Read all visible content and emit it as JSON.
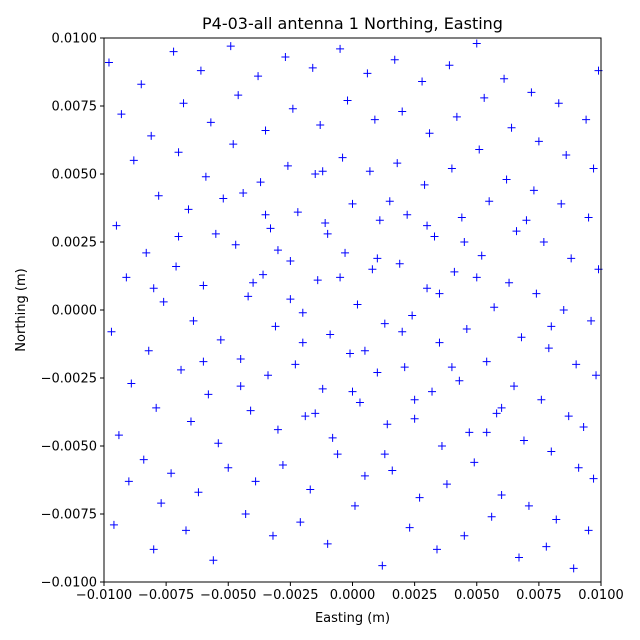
{
  "chart_data": {
    "type": "scatter",
    "title": "P4-03-all antenna 1 Northing, Easting",
    "xlabel": "Easting (m)",
    "ylabel": "Northing (m)",
    "xlim": [
      -0.01,
      0.01
    ],
    "ylim": [
      -0.01,
      0.01
    ],
    "xticks": [
      "−0.0100",
      "−0.0075",
      "−0.0050",
      "−0.0025",
      "0.0000",
      "0.0025",
      "0.0050",
      "0.0075",
      "0.0100"
    ],
    "yticks": [
      "−0.0100",
      "−0.0075",
      "−0.0050",
      "−0.0025",
      "0.0000",
      "0.0025",
      "0.0050",
      "0.0075",
      "0.0100"
    ],
    "tick_values": [
      -0.01,
      -0.0075,
      -0.005,
      -0.0025,
      0,
      0.0025,
      0.005,
      0.0075,
      0.01
    ],
    "marker": "+",
    "color": "#0000ff",
    "grid": false,
    "note_points": "representative sample of the dense point cloud",
    "points": [
      [
        -0.0098,
        0.0091
      ],
      [
        -0.0093,
        0.0072
      ],
      [
        -0.0088,
        0.0055
      ],
      [
        -0.0095,
        0.0031
      ],
      [
        -0.0091,
        0.0012
      ],
      [
        -0.0097,
        -0.0008
      ],
      [
        -0.0089,
        -0.0027
      ],
      [
        -0.0094,
        -0.0046
      ],
      [
        -0.009,
        -0.0063
      ],
      [
        -0.0096,
        -0.0079
      ],
      [
        -0.0085,
        0.0083
      ],
      [
        -0.0081,
        0.0064
      ],
      [
        -0.0078,
        0.0042
      ],
      [
        -0.0083,
        0.0021
      ],
      [
        -0.0076,
        0.0003
      ],
      [
        -0.0082,
        -0.0015
      ],
      [
        -0.0079,
        -0.0036
      ],
      [
        -0.0084,
        -0.0055
      ],
      [
        -0.0077,
        -0.0071
      ],
      [
        -0.008,
        -0.0088
      ],
      [
        -0.0072,
        0.0095
      ],
      [
        -0.0068,
        0.0076
      ],
      [
        -0.007,
        0.0058
      ],
      [
        -0.0066,
        0.0037
      ],
      [
        -0.0071,
        0.0016
      ],
      [
        -0.0064,
        -0.0004
      ],
      [
        -0.0069,
        -0.0022
      ],
      [
        -0.0065,
        -0.0041
      ],
      [
        -0.0073,
        -0.006
      ],
      [
        -0.0067,
        -0.0081
      ],
      [
        -0.0061,
        0.0088
      ],
      [
        -0.0057,
        0.0069
      ],
      [
        -0.0059,
        0.0049
      ],
      [
        -0.0055,
        0.0028
      ],
      [
        -0.006,
        0.0009
      ],
      [
        -0.0053,
        -0.0011
      ],
      [
        -0.0058,
        -0.0031
      ],
      [
        -0.0054,
        -0.0049
      ],
      [
        -0.0062,
        -0.0067
      ],
      [
        -0.0056,
        -0.0092
      ],
      [
        -0.0049,
        0.0097
      ],
      [
        -0.0046,
        0.0079
      ],
      [
        -0.0048,
        0.0061
      ],
      [
        -0.0044,
        0.0043
      ],
      [
        -0.0047,
        0.0024
      ],
      [
        -0.0042,
        0.0005
      ],
      [
        -0.0045,
        -0.0018
      ],
      [
        -0.0041,
        -0.0037
      ],
      [
        -0.005,
        -0.0058
      ],
      [
        -0.0043,
        -0.0075
      ],
      [
        -0.0038,
        0.0086
      ],
      [
        -0.0035,
        0.0066
      ],
      [
        -0.0037,
        0.0047
      ],
      [
        -0.0033,
        0.003
      ],
      [
        -0.0036,
        0.0013
      ],
      [
        -0.0031,
        -0.0006
      ],
      [
        -0.0034,
        -0.0024
      ],
      [
        -0.003,
        -0.0044
      ],
      [
        -0.0039,
        -0.0063
      ],
      [
        -0.0032,
        -0.0083
      ],
      [
        -0.0027,
        0.0093
      ],
      [
        -0.0024,
        0.0074
      ],
      [
        -0.0026,
        0.0053
      ],
      [
        -0.0022,
        0.0036
      ],
      [
        -0.0025,
        0.0018
      ],
      [
        -0.002,
        -0.0001
      ],
      [
        -0.0023,
        -0.002
      ],
      [
        -0.0019,
        -0.0039
      ],
      [
        -0.0028,
        -0.0057
      ],
      [
        -0.0021,
        -0.0078
      ],
      [
        -0.0016,
        0.0089
      ],
      [
        -0.0013,
        0.0068
      ],
      [
        -0.0015,
        0.005
      ],
      [
        -0.0011,
        0.0032
      ],
      [
        -0.0014,
        0.0011
      ],
      [
        -0.0009,
        -0.0009
      ],
      [
        -0.0012,
        -0.0029
      ],
      [
        -0.0008,
        -0.0047
      ],
      [
        -0.0017,
        -0.0066
      ],
      [
        -0.001,
        -0.0086
      ],
      [
        -0.0005,
        0.0096
      ],
      [
        -0.0002,
        0.0077
      ],
      [
        -0.0004,
        0.0056
      ],
      [
        0.0,
        0.0039
      ],
      [
        -0.0003,
        0.0021
      ],
      [
        0.0002,
        0.0002
      ],
      [
        -0.0001,
        -0.0016
      ],
      [
        0.0003,
        -0.0034
      ],
      [
        -0.0006,
        -0.0053
      ],
      [
        0.0001,
        -0.0072
      ],
      [
        0.0006,
        0.0087
      ],
      [
        0.0009,
        0.007
      ],
      [
        0.0007,
        0.0051
      ],
      [
        0.0011,
        0.0033
      ],
      [
        0.0008,
        0.0015
      ],
      [
        0.0013,
        -0.0005
      ],
      [
        0.001,
        -0.0023
      ],
      [
        0.0014,
        -0.0042
      ],
      [
        0.0005,
        -0.0061
      ],
      [
        0.0012,
        -0.0094
      ],
      [
        0.0017,
        0.0092
      ],
      [
        0.002,
        0.0073
      ],
      [
        0.0018,
        0.0054
      ],
      [
        0.0022,
        0.0035
      ],
      [
        0.0019,
        0.0017
      ],
      [
        0.0024,
        -0.0002
      ],
      [
        0.0021,
        -0.0021
      ],
      [
        0.0025,
        -0.004
      ],
      [
        0.0016,
        -0.0059
      ],
      [
        0.0023,
        -0.008
      ],
      [
        0.0028,
        0.0084
      ],
      [
        0.0031,
        0.0065
      ],
      [
        0.0029,
        0.0046
      ],
      [
        0.0033,
        0.0027
      ],
      [
        0.003,
        0.0008
      ],
      [
        0.0035,
        -0.0012
      ],
      [
        0.0032,
        -0.003
      ],
      [
        0.0036,
        -0.005
      ],
      [
        0.0027,
        -0.0069
      ],
      [
        0.0034,
        -0.0088
      ],
      [
        0.0039,
        0.009
      ],
      [
        0.0042,
        0.0071
      ],
      [
        0.004,
        0.0052
      ],
      [
        0.0044,
        0.0034
      ],
      [
        0.0041,
        0.0014
      ],
      [
        0.0046,
        -0.0007
      ],
      [
        0.0043,
        -0.0026
      ],
      [
        0.0047,
        -0.0045
      ],
      [
        0.0038,
        -0.0064
      ],
      [
        0.0045,
        -0.0083
      ],
      [
        0.005,
        0.0098
      ],
      [
        0.0053,
        0.0078
      ],
      [
        0.0051,
        0.0059
      ],
      [
        0.0055,
        0.004
      ],
      [
        0.0052,
        0.002
      ],
      [
        0.0057,
        0.0001
      ],
      [
        0.0054,
        -0.0019
      ],
      [
        0.0058,
        -0.0038
      ],
      [
        0.0049,
        -0.0056
      ],
      [
        0.0056,
        -0.0076
      ],
      [
        0.0061,
        0.0085
      ],
      [
        0.0064,
        0.0067
      ],
      [
        0.0062,
        0.0048
      ],
      [
        0.0066,
        0.0029
      ],
      [
        0.0063,
        0.001
      ],
      [
        0.0068,
        -0.001
      ],
      [
        0.0065,
        -0.0028
      ],
      [
        0.0069,
        -0.0048
      ],
      [
        0.006,
        -0.0068
      ],
      [
        0.0067,
        -0.0091
      ],
      [
        0.0072,
        0.008
      ],
      [
        0.0075,
        0.0062
      ],
      [
        0.0073,
        0.0044
      ],
      [
        0.0077,
        0.0025
      ],
      [
        0.0074,
        0.0006
      ],
      [
        0.0079,
        -0.0014
      ],
      [
        0.0076,
        -0.0033
      ],
      [
        0.008,
        -0.0052
      ],
      [
        0.0071,
        -0.0072
      ],
      [
        0.0078,
        -0.0087
      ],
      [
        0.0083,
        0.0076
      ],
      [
        0.0086,
        0.0057
      ],
      [
        0.0084,
        0.0039
      ],
      [
        0.0088,
        0.0019
      ],
      [
        0.0085,
        0.0
      ],
      [
        0.009,
        -0.002
      ],
      [
        0.0087,
        -0.0039
      ],
      [
        0.0091,
        -0.0058
      ],
      [
        0.0082,
        -0.0077
      ],
      [
        0.0089,
        -0.0095
      ],
      [
        0.0094,
        0.007
      ],
      [
        0.0097,
        0.0052
      ],
      [
        0.0095,
        0.0034
      ],
      [
        0.0099,
        0.0015
      ],
      [
        0.0096,
        -0.0004
      ],
      [
        0.0098,
        -0.0024
      ],
      [
        0.0093,
        -0.0043
      ],
      [
        0.0097,
        -0.0062
      ],
      [
        0.0095,
        -0.0081
      ],
      [
        0.0099,
        0.0088
      ],
      [
        -0.004,
        0.001
      ],
      [
        -0.003,
        0.0022
      ],
      [
        -0.002,
        -0.0012
      ],
      [
        -0.001,
        0.0028
      ],
      [
        0.0,
        -0.003
      ],
      [
        0.001,
        0.0019
      ],
      [
        0.002,
        -0.0008
      ],
      [
        0.003,
        0.0031
      ],
      [
        0.004,
        -0.0021
      ],
      [
        0.005,
        0.0012
      ],
      [
        -0.0045,
        -0.0028
      ],
      [
        -0.0035,
        0.0035
      ],
      [
        -0.0025,
        0.0004
      ],
      [
        -0.0015,
        -0.0038
      ],
      [
        -0.0005,
        0.0012
      ],
      [
        0.0005,
        -0.0015
      ],
      [
        0.0015,
        0.004
      ],
      [
        0.0025,
        -0.0033
      ],
      [
        0.0035,
        0.0006
      ],
      [
        0.0045,
        0.0025
      ],
      [
        -0.007,
        0.0027
      ],
      [
        -0.006,
        -0.0019
      ],
      [
        -0.008,
        0.0008
      ],
      [
        0.006,
        -0.0036
      ],
      [
        0.007,
        0.0033
      ],
      [
        0.008,
        -0.0006
      ],
      [
        -0.0052,
        0.0041
      ],
      [
        0.0054,
        -0.0045
      ],
      [
        -0.0012,
        0.0051
      ],
      [
        0.0013,
        -0.0053
      ]
    ]
  }
}
